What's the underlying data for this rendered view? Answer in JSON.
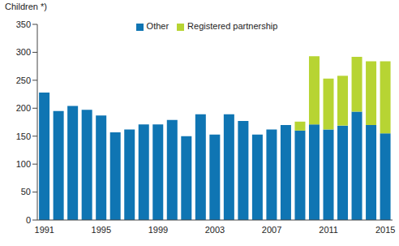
{
  "chart_data": {
    "type": "bar",
    "stacked": true,
    "y_label": "Children *)",
    "categories": [
      "1991",
      null,
      null,
      null,
      "1995",
      null,
      null,
      null,
      "1999",
      null,
      null,
      null,
      "2003",
      null,
      null,
      null,
      "2007",
      null,
      null,
      null,
      "2011",
      null,
      null,
      null,
      "2015"
    ],
    "series": [
      {
        "name": "Other",
        "color": "#0f75b3",
        "values": [
          228,
          195,
          204,
          197,
          187,
          157,
          162,
          171,
          171,
          179,
          150,
          189,
          153,
          189,
          177,
          153,
          162,
          170,
          160,
          171,
          162,
          169,
          194,
          170,
          155
        ]
      },
      {
        "name": "Registered partnership",
        "color": "#b7d433",
        "values": [
          null,
          null,
          null,
          null,
          null,
          null,
          null,
          null,
          null,
          null,
          null,
          null,
          null,
          null,
          null,
          null,
          null,
          null,
          16,
          122,
          91,
          89,
          98,
          114,
          129
        ]
      }
    ],
    "ylim": [
      0,
      350
    ],
    "yticks": [
      0,
      50,
      100,
      150,
      200,
      250,
      300,
      350
    ],
    "grid": false,
    "legend": "top"
  }
}
